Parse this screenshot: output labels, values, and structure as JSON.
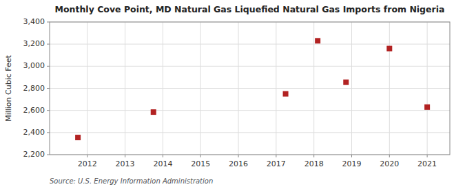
{
  "chart_data": {
    "type": "scatter",
    "title": "Monthly Cove Point, MD Natural Gas Liquefied Natural Gas Imports from Nigeria",
    "ylabel": "Million Cubic Feet",
    "source": "Source: U.S. Energy Information Administration",
    "x": [
      2011.75,
      2013.75,
      2017.25,
      2018.1,
      2018.85,
      2020.0,
      2021.0
    ],
    "values": [
      2355,
      2585,
      2750,
      3230,
      2855,
      3160,
      2630
    ],
    "color": "#b22222",
    "marker": "square",
    "xlim": [
      2011.0,
      2021.6
    ],
    "ylim": [
      2200,
      3400
    ],
    "xticks": [
      2012,
      2013,
      2014,
      2015,
      2016,
      2017,
      2018,
      2019,
      2020,
      2021
    ],
    "yticks": [
      {
        "value": 2200,
        "label": "2,200"
      },
      {
        "value": 2400,
        "label": "2,400"
      },
      {
        "value": 2600,
        "label": "2,600"
      },
      {
        "value": 2800,
        "label": "2,800"
      },
      {
        "value": 3000,
        "label": "3,000"
      },
      {
        "value": 3200,
        "label": "3,200"
      },
      {
        "value": 3400,
        "label": "3,400"
      }
    ],
    "grid": true
  }
}
